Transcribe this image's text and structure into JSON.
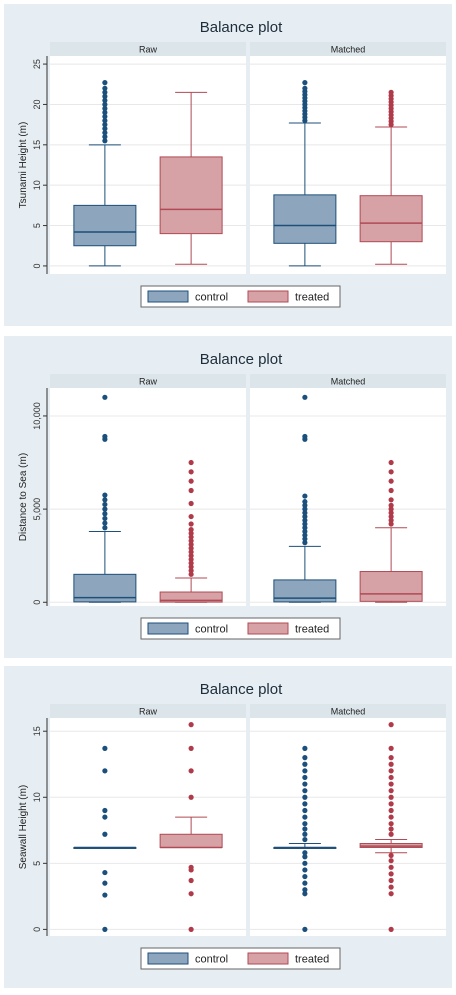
{
  "colors": {
    "background": "#e6eef3",
    "panel_bg": "#ffffff",
    "strip_bg": "#dbe5ea",
    "axis": "#333333",
    "grid": "#e8e8e8",
    "control_fill": "#8ea6bd",
    "control_stroke": "#1d4f79",
    "control_point": "#1b4f7c",
    "treated_fill": "#d7a2a6",
    "treated_stroke": "#b04a55",
    "treated_point": "#b13a4a"
  },
  "chart_data": [
    {
      "type": "box",
      "title": "Balance plot",
      "ylabel": "Tsunami Height (m)",
      "panels": [
        "Raw",
        "Matched"
      ],
      "ylim": [
        -1,
        26
      ],
      "yticks": [
        0,
        5,
        10,
        15,
        20,
        25
      ],
      "ytick_labels": [
        "0",
        "5",
        "10",
        "15",
        "20",
        "25"
      ],
      "grid": true,
      "legend": {
        "entries": [
          "control",
          "treated"
        ],
        "placement": "bottom"
      },
      "series": [
        {
          "name": "control",
          "boxes": [
            {
              "panel": "Raw",
              "min": 0,
              "q1": 2.5,
              "median": 4.2,
              "q3": 7.5,
              "max": 15.0,
              "outliers": [
                15.5,
                16,
                16.5,
                17,
                17.5,
                18,
                18.5,
                19,
                19.5,
                20,
                20.5,
                21,
                21.5,
                22,
                22.7
              ]
            },
            {
              "panel": "Matched",
              "min": 0,
              "q1": 2.8,
              "median": 5.0,
              "q3": 8.8,
              "max": 17.7,
              "outliers": [
                18,
                18.4,
                18.8,
                19.2,
                19.6,
                20,
                20.4,
                20.8,
                21.2,
                21.6,
                22.0,
                22.7
              ]
            }
          ]
        },
        {
          "name": "treated",
          "boxes": [
            {
              "panel": "Raw",
              "min": 0.2,
              "q1": 4.0,
              "median": 7.0,
              "q3": 13.5,
              "max": 21.5,
              "outliers": []
            },
            {
              "panel": "Matched",
              "min": 0.2,
              "q1": 3.0,
              "median": 5.3,
              "q3": 8.7,
              "max": 17.2,
              "outliers": [
                17.5,
                17.9,
                18.3,
                18.7,
                19.1,
                19.5,
                19.9,
                20.3,
                20.7,
                21.1,
                21.5
              ]
            }
          ]
        }
      ]
    },
    {
      "type": "box",
      "title": "Balance plot",
      "ylabel": "Distance to Sea (m)",
      "panels": [
        "Raw",
        "Matched"
      ],
      "ylim": [
        -200,
        11500
      ],
      "yticks": [
        0,
        5000,
        10000
      ],
      "ytick_labels": [
        "0",
        "5,000",
        "10,000"
      ],
      "grid": true,
      "legend": {
        "entries": [
          "control",
          "treated"
        ],
        "placement": "bottom"
      },
      "series": [
        {
          "name": "control",
          "boxes": [
            {
              "panel": "Raw",
              "min": 0,
              "q1": 20,
              "median": 250,
              "q3": 1500,
              "max": 3800,
              "outliers": [
                4000,
                4250,
                4500,
                4750,
                5000,
                5250,
                5500,
                5750,
                8750,
                8900,
                11000
              ]
            },
            {
              "panel": "Matched",
              "min": 0,
              "q1": 20,
              "median": 220,
              "q3": 1200,
              "max": 3000,
              "outliers": [
                3200,
                3400,
                3600,
                3800,
                4000,
                4200,
                4400,
                4600,
                4800,
                5000,
                5200,
                5400,
                5700,
                8750,
                8900,
                11000
              ]
            }
          ]
        },
        {
          "name": "treated",
          "boxes": [
            {
              "panel": "Raw",
              "min": 0,
              "q1": 10,
              "median": 100,
              "q3": 550,
              "max": 1300,
              "outliers": [
                1500,
                1700,
                1900,
                2100,
                2300,
                2500,
                2700,
                2900,
                3100,
                3300,
                3500,
                3700,
                3900,
                4200,
                4600,
                5300,
                6000,
                6500,
                7000,
                7500
              ]
            },
            {
              "panel": "Matched",
              "min": 0,
              "q1": 50,
              "median": 450,
              "q3": 1650,
              "max": 4000,
              "outliers": [
                4200,
                4400,
                4600,
                4800,
                5000,
                5200,
                5500,
                6000,
                6500,
                7000,
                7500
              ]
            }
          ]
        }
      ]
    },
    {
      "type": "box",
      "title": "Balance plot",
      "ylabel": "Seawall Height (m)",
      "panels": [
        "Raw",
        "Matched"
      ],
      "ylim": [
        -0.5,
        16
      ],
      "yticks": [
        0,
        5,
        10,
        15
      ],
      "ytick_labels": [
        "0",
        "5",
        "10",
        "15"
      ],
      "grid": true,
      "legend": {
        "entries": [
          "control",
          "treated"
        ],
        "placement": "bottom"
      },
      "series": [
        {
          "name": "control",
          "boxes": [
            {
              "panel": "Raw",
              "min": 6.2,
              "q1": 6.2,
              "median": 6.2,
              "q3": 6.2,
              "max": 6.2,
              "outliers": [
                0,
                2.6,
                3.5,
                4.3,
                7.2,
                8.5,
                9.0,
                12.0,
                13.7
              ]
            },
            {
              "panel": "Matched",
              "min": 6.2,
              "q1": 6.2,
              "median": 6.2,
              "q3": 6.2,
              "max": 6.5,
              "outliers": [
                0,
                2.7,
                3.0,
                3.5,
                4.0,
                4.5,
                5.0,
                5.5,
                5.8,
                6.8,
                7.2,
                7.6,
                8.0,
                8.5,
                9.0,
                9.5,
                10.0,
                10.5,
                11.0,
                11.5,
                12.0,
                12.5,
                13.0,
                13.7
              ]
            }
          ]
        },
        {
          "name": "treated",
          "boxes": [
            {
              "panel": "Raw",
              "min": 6.2,
              "q1": 6.2,
              "median": 6.2,
              "q3": 7.2,
              "max": 8.5,
              "outliers": [
                0,
                2.7,
                3.7,
                4.5,
                4.7,
                10.0,
                12.0,
                13.7,
                15.5
              ]
            },
            {
              "panel": "Matched",
              "min": 5.8,
              "q1": 6.2,
              "median": 6.3,
              "q3": 6.5,
              "max": 6.8,
              "outliers": [
                0,
                2.7,
                3.2,
                3.7,
                4.2,
                4.7,
                5.2,
                5.6,
                7.2,
                7.6,
                8.0,
                8.5,
                9.0,
                9.5,
                10.0,
                10.5,
                11.0,
                11.5,
                12.0,
                12.5,
                13.0,
                13.7,
                15.5
              ]
            }
          ]
        }
      ]
    }
  ]
}
